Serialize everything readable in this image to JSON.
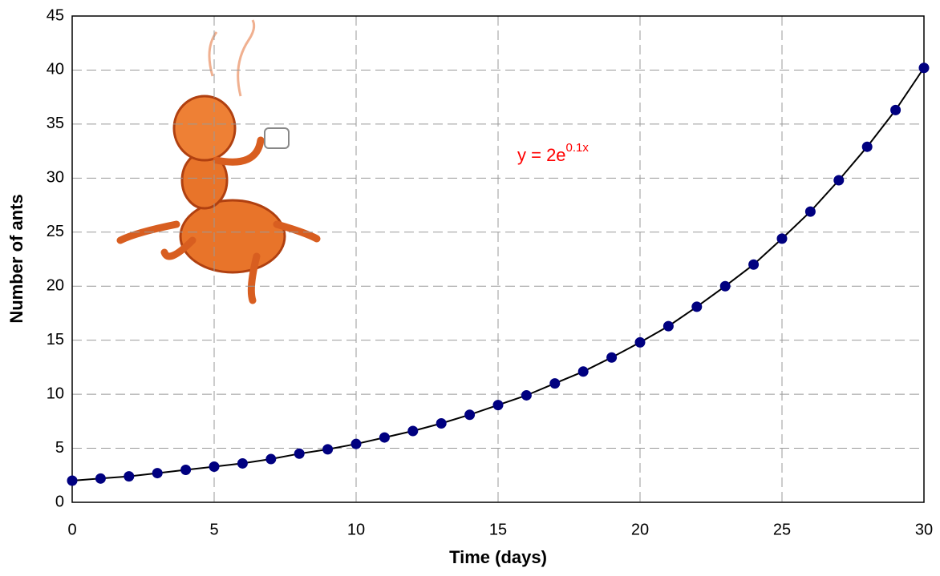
{
  "chart_data": {
    "type": "line",
    "x_label": "Time (days)",
    "y_label": "Number of ants",
    "annotation": {
      "text": "y = 2e",
      "superscript": "0.1x",
      "color": "#ff0000"
    },
    "x": [
      0,
      1,
      2,
      3,
      4,
      5,
      6,
      7,
      8,
      9,
      10,
      11,
      12,
      13,
      14,
      15,
      16,
      17,
      18,
      19,
      20,
      21,
      22,
      23,
      24,
      25,
      26,
      27,
      28,
      29,
      30
    ],
    "series": [
      {
        "color": "#000000",
        "marker_color": "#000080",
        "values": [
          2.0,
          2.2,
          2.4,
          2.7,
          3.0,
          3.3,
          3.6,
          4.0,
          4.5,
          4.9,
          5.4,
          6.0,
          6.6,
          7.3,
          8.1,
          9.0,
          9.9,
          11.0,
          12.1,
          13.4,
          14.8,
          16.3,
          18.1,
          20.0,
          22.0,
          24.4,
          26.9,
          29.8,
          32.9,
          36.3,
          40.2
        ]
      }
    ],
    "xlim": [
      0,
      30
    ],
    "xticks": [
      0,
      5,
      10,
      15,
      20,
      25,
      30
    ],
    "ylim": [
      0,
      45
    ],
    "yticks": [
      0,
      5,
      10,
      15,
      20,
      25,
      30,
      35,
      40,
      45
    ],
    "grid": true
  }
}
